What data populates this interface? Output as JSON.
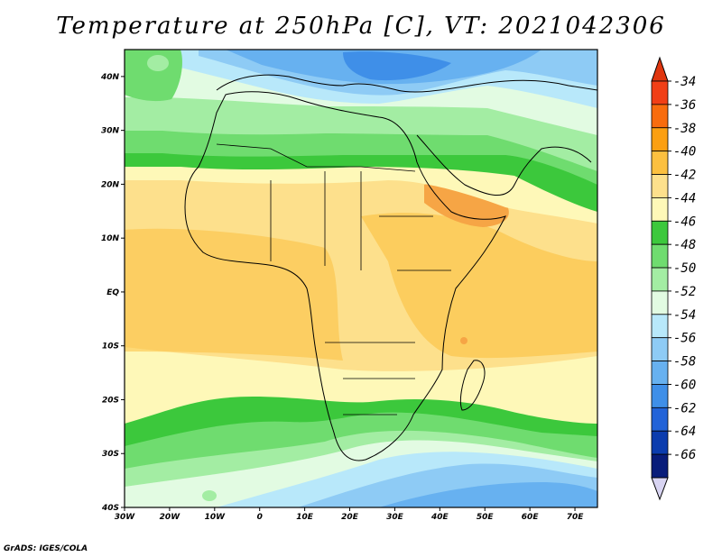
{
  "title": "Temperature at 250hPa [C], VT: 2021042306",
  "credit": "GrADS: IGES/COLA",
  "map": {
    "lon_range": [
      -30,
      75
    ],
    "lat_range": [
      -40,
      45
    ],
    "lon_ticks": [
      {
        "value": -30,
        "label": "30W"
      },
      {
        "value": -20,
        "label": "20W"
      },
      {
        "value": -10,
        "label": "10W"
      },
      {
        "value": 0,
        "label": "0"
      },
      {
        "value": 10,
        "label": "10E"
      },
      {
        "value": 20,
        "label": "20E"
      },
      {
        "value": 30,
        "label": "30E"
      },
      {
        "value": 40,
        "label": "40E"
      },
      {
        "value": 50,
        "label": "50E"
      },
      {
        "value": 60,
        "label": "60E"
      },
      {
        "value": 70,
        "label": "70E"
      }
    ],
    "lat_ticks": [
      {
        "value": 40,
        "label": "40N"
      },
      {
        "value": 30,
        "label": "30N"
      },
      {
        "value": 20,
        "label": "20N"
      },
      {
        "value": 10,
        "label": "10N"
      },
      {
        "value": 0,
        "label": "EQ"
      },
      {
        "value": -10,
        "label": "10S"
      },
      {
        "value": -20,
        "label": "20S"
      },
      {
        "value": -30,
        "label": "30S"
      },
      {
        "value": -40,
        "label": "40S"
      }
    ]
  },
  "colorbar": {
    "labels": [
      "-34",
      "-36",
      "-38",
      "-40",
      "-42",
      "-44",
      "-46",
      "-48",
      "-50",
      "-52",
      "-54",
      "-56",
      "-58",
      "-60",
      "-62",
      "-64",
      "-66"
    ],
    "colors": [
      "#f13f16",
      "#f86c0e",
      "#fb9f12",
      "#fcc040",
      "#fde08c",
      "#fef8b8",
      "#3cc83c",
      "#6fdc6f",
      "#a3eda3",
      "#e2fbe2",
      "#b8e8fa",
      "#8ecbf5",
      "#67b1f0",
      "#3f8fe8",
      "#2263d8",
      "#0b3cae",
      "#081c7a"
    ],
    "top_arrow_color": "#e0360f",
    "bottom_arrow_color": "#d8d4f2"
  },
  "field_colors": {
    "warm_m40": "#fcc040",
    "warm_m42": "#fde08c",
    "warm_m44": "#fef8b8",
    "green_m46": "#3cc83c",
    "green_m48": "#6fdc6f",
    "green_m50": "#a3eda3",
    "pale_m52": "#e2fbe2",
    "blue_m54": "#b8e8fa",
    "blue_m56": "#8ecbf5",
    "blue_m58": "#67b1f0",
    "blue_m60": "#3f8fe8"
  }
}
